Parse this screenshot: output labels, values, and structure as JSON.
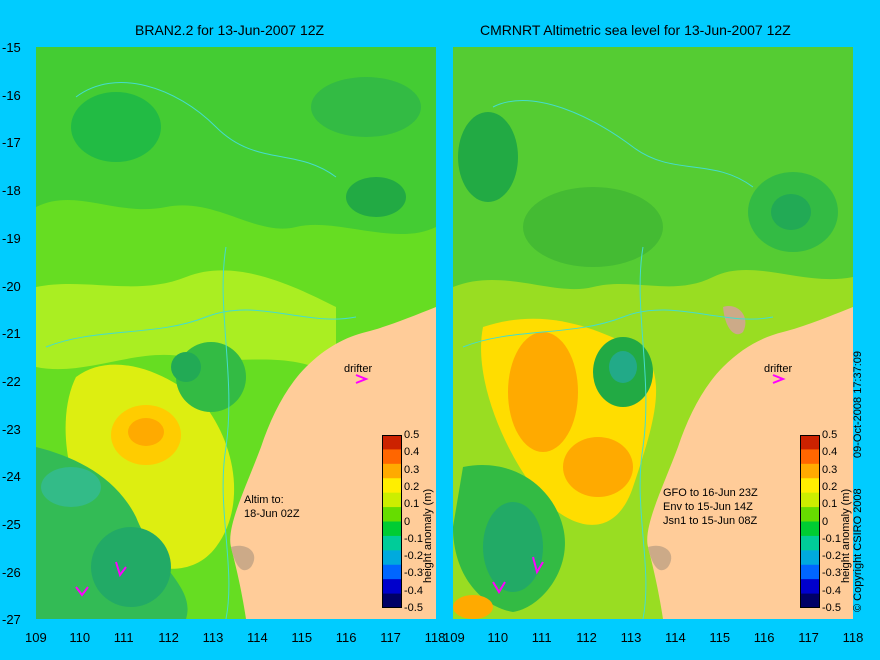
{
  "panels": [
    {
      "title": "BRAN2.2 for 13-Jun-2007 12Z",
      "annotation_lines": [
        "Altim to:",
        "18-Jun 02Z"
      ],
      "drifter_label": "drifter"
    },
    {
      "title": "CMRNRT Altimetric sea level  for 13-Jun-2007 12Z",
      "annotation_lines": [
        "GFO to 16-Jun 23Z",
        "Env to 15-Jun 14Z",
        "Jsn1 to 15-Jun 08Z"
      ],
      "drifter_label": "drifter"
    }
  ],
  "axes": {
    "y_ticks": [
      "-15",
      "-16",
      "-17",
      "-18",
      "-19",
      "-20",
      "-21",
      "-22",
      "-23",
      "-24",
      "-25",
      "-26",
      "-27"
    ],
    "x_ticks_left": [
      "109",
      "110",
      "111",
      "112",
      "113",
      "114",
      "115",
      "116",
      "117",
      "118"
    ],
    "x_ticks_right": [
      "109",
      "110",
      "111",
      "112",
      "113",
      "114",
      "115",
      "116",
      "117",
      "118"
    ]
  },
  "colorbar": {
    "label": "height anomaly (m)",
    "ticks": [
      "0.5",
      "0.4",
      "0.3",
      "0.2",
      "0.1",
      "0",
      "-0.1",
      "-0.2",
      "-0.3",
      "-0.4",
      "-0.5"
    ],
    "colors": [
      "#000066",
      "#0000cc",
      "#0066ff",
      "#00aadd",
      "#00cc99",
      "#00cc33",
      "#66dd00",
      "#ccee00",
      "#ffee00",
      "#ffaa00",
      "#ff6600",
      "#cc2200"
    ]
  },
  "copyright": "© Copyright CSIRO 2008",
  "timestamp": "09-Oct-2008 17:37:09",
  "colors": {
    "background": "#00ccff",
    "land": "#ffcc99",
    "ocean_green": "#33cc33",
    "ocean_light": "#99ee33",
    "yellow": "#ffee00",
    "orange": "#ffaa00",
    "drifter": "#ff00ff"
  }
}
